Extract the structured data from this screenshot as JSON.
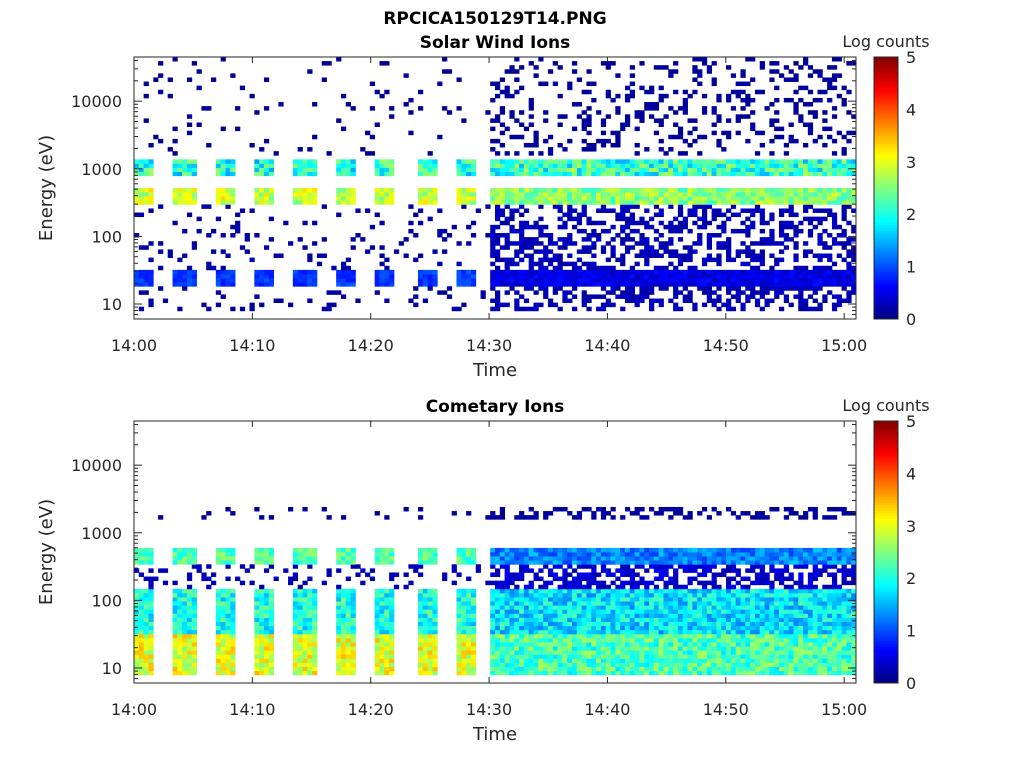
{
  "figure_title": "RPCICA150129T14.PNG",
  "chart_data": [
    {
      "type": "heatmap",
      "title": "Solar Wind Ions",
      "xlabel": "Time",
      "ylabel": "Energy (eV)",
      "xticks": [
        "14:00",
        "14:10",
        "14:20",
        "14:30",
        "14:40",
        "14:50",
        "15:00"
      ],
      "xlim": [
        "14:00",
        "15:01"
      ],
      "yscale": "log",
      "yticks": [
        "10",
        "100",
        "1000",
        "10000"
      ],
      "ylim": [
        6,
        45000
      ],
      "colorbar": {
        "label": "Log counts",
        "ticks": [
          "0",
          "1",
          "2",
          "3",
          "4",
          "5"
        ],
        "range": [
          0,
          5
        ],
        "colormap": "jet"
      },
      "dominant_bands": [
        {
          "energy_eV": 400,
          "level": "2-3"
        },
        {
          "energy_eV": 1000,
          "level": "1-3"
        },
        {
          "energy_eV": 25,
          "level": "0-1 (intermittent before 14:30, continuous after)"
        }
      ]
    },
    {
      "type": "heatmap",
      "title": "Cometary Ions",
      "xlabel": "Time",
      "ylabel": "Energy (eV)",
      "xticks": [
        "14:00",
        "14:10",
        "14:20",
        "14:30",
        "14:40",
        "14:50",
        "15:00"
      ],
      "xlim": [
        "14:00",
        "15:01"
      ],
      "yscale": "log",
      "yticks": [
        "10",
        "100",
        "1000",
        "10000"
      ],
      "ylim": [
        6,
        45000
      ],
      "colorbar": {
        "label": "Log counts",
        "ticks": [
          "0",
          "1",
          "2",
          "3",
          "4",
          "5"
        ],
        "range": [
          0,
          5
        ],
        "colormap": "jet"
      },
      "dominant_bands": [
        {
          "energy_eV": 15,
          "level": "2-3"
        },
        {
          "energy_eV": 50,
          "level": "1-2"
        },
        {
          "energy_eV": 450,
          "level": "0-2"
        }
      ]
    }
  ]
}
